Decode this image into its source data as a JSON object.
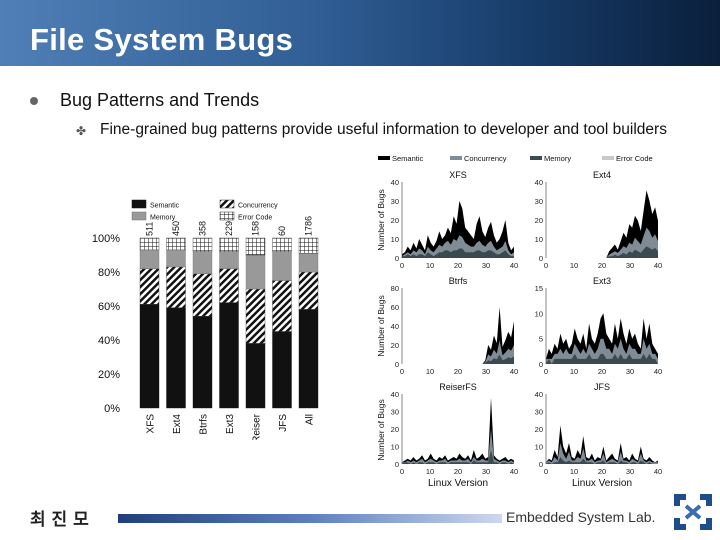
{
  "slide": {
    "title": "File System Bugs",
    "bullet1": "Bug Patterns and Trends",
    "bullet2": "Fine-grained bug patterns provide useful information to developer and tool builders",
    "footer_author": "최 진 모",
    "footer_lab": "Embedded System Lab."
  },
  "chart_data": [
    {
      "type": "bar",
      "stacked": true,
      "categories": [
        "XFS",
        "Ext4",
        "Btrfs",
        "Ext3",
        "Reiser",
        "JFS",
        "All"
      ],
      "counts": [
        "511",
        "450",
        "358",
        "229",
        "158",
        "60",
        "1786"
      ],
      "legend": [
        "Semantic",
        "Concurrency",
        "Memory",
        "Error Code"
      ],
      "ylabels": [
        "0%",
        "20%",
        "40%",
        "60%",
        "80%",
        "100%"
      ],
      "series": [
        {
          "name": "Semantic",
          "values": [
            61,
            59,
            54,
            62,
            38,
            45,
            58
          ]
        },
        {
          "name": "Concurrency",
          "values": [
            21,
            24,
            25,
            20,
            32,
            30,
            22
          ]
        },
        {
          "name": "Memory",
          "values": [
            11,
            10,
            13,
            10,
            20,
            17,
            11
          ]
        },
        {
          "name": "Error Code",
          "values": [
            7,
            7,
            8,
            8,
            10,
            8,
            9
          ]
        }
      ]
    },
    {
      "type": "area",
      "legend": [
        "Semantic",
        "Concurrency",
        "Memory",
        "Error Code"
      ],
      "xlabel": "Linux Version",
      "ylabel": "Number of Bugs",
      "xticks": [
        "0",
        "10",
        "20",
        "30",
        "40"
      ],
      "panels": [
        {
          "name": "XFS",
          "yticks": [
            "0",
            "10",
            "20",
            "30",
            "40"
          ],
          "ymax": 40,
          "semantic": [
            2,
            3,
            6,
            4,
            8,
            5,
            10,
            7,
            4,
            12,
            8,
            6,
            9,
            14,
            10,
            12,
            16,
            13,
            22,
            18,
            30,
            26,
            16,
            14,
            12,
            10,
            18,
            22,
            14,
            11,
            16,
            19,
            12,
            8,
            10,
            14,
            20,
            8,
            4,
            6
          ],
          "concurrency": [
            1,
            2,
            3,
            2,
            4,
            3,
            5,
            4,
            2,
            6,
            4,
            3,
            5,
            7,
            6,
            8,
            9,
            7,
            10,
            9,
            12,
            11,
            8,
            7,
            6,
            6,
            8,
            9,
            7,
            6,
            8,
            9,
            6,
            4,
            5,
            6,
            9,
            4,
            2,
            3
          ],
          "memory": [
            1,
            1,
            2,
            1,
            2,
            1,
            2,
            2,
            1,
            3,
            2,
            1,
            2,
            3,
            3,
            4,
            4,
            3,
            4,
            4,
            5,
            5,
            3,
            3,
            3,
            3,
            4,
            4,
            3,
            3,
            4,
            4,
            3,
            2,
            2,
            3,
            4,
            2,
            1,
            1
          ]
        },
        {
          "name": "Ext4",
          "yticks": [
            "0",
            "10",
            "20",
            "30",
            "40"
          ],
          "ymax": 45,
          "semantic": [
            0,
            0,
            0,
            0,
            0,
            0,
            0,
            0,
            0,
            0,
            0,
            0,
            0,
            0,
            0,
            0,
            0,
            0,
            0,
            0,
            0,
            0,
            4,
            6,
            8,
            5,
            10,
            15,
            12,
            20,
            18,
            25,
            22,
            16,
            28,
            40,
            34,
            26,
            30,
            22
          ],
          "concurrency": [
            0,
            0,
            0,
            0,
            0,
            0,
            0,
            0,
            0,
            0,
            0,
            0,
            0,
            0,
            0,
            0,
            0,
            0,
            0,
            0,
            0,
            0,
            2,
            3,
            4,
            3,
            5,
            7,
            6,
            9,
            8,
            12,
            10,
            8,
            13,
            18,
            16,
            12,
            14,
            10
          ],
          "memory": [
            0,
            0,
            0,
            0,
            0,
            0,
            0,
            0,
            0,
            0,
            0,
            0,
            0,
            0,
            0,
            0,
            0,
            0,
            0,
            0,
            0,
            0,
            1,
            1,
            2,
            1,
            2,
            3,
            2,
            4,
            3,
            5,
            4,
            3,
            5,
            7,
            6,
            5,
            6,
            4
          ]
        },
        {
          "name": "Btrfs",
          "yticks": [
            "0",
            "20",
            "40",
            "60",
            "80"
          ],
          "ymax": 80,
          "semantic": [
            0,
            0,
            0,
            0,
            0,
            0,
            0,
            0,
            0,
            0,
            0,
            0,
            0,
            0,
            0,
            0,
            0,
            0,
            0,
            0,
            0,
            0,
            0,
            0,
            0,
            0,
            0,
            0,
            0,
            4,
            20,
            15,
            30,
            22,
            60,
            18,
            25,
            34,
            28,
            45
          ],
          "concurrency": [
            0,
            0,
            0,
            0,
            0,
            0,
            0,
            0,
            0,
            0,
            0,
            0,
            0,
            0,
            0,
            0,
            0,
            0,
            0,
            0,
            0,
            0,
            0,
            0,
            0,
            0,
            0,
            0,
            0,
            2,
            10,
            8,
            15,
            11,
            25,
            9,
            12,
            16,
            14,
            20
          ],
          "memory": [
            0,
            0,
            0,
            0,
            0,
            0,
            0,
            0,
            0,
            0,
            0,
            0,
            0,
            0,
            0,
            0,
            0,
            0,
            0,
            0,
            0,
            0,
            0,
            0,
            0,
            0,
            0,
            0,
            0,
            1,
            4,
            3,
            6,
            5,
            10,
            4,
            5,
            7,
            6,
            8
          ]
        },
        {
          "name": "Ext3",
          "yticks": [
            "0",
            "5",
            "10",
            "15"
          ],
          "ymax": 15,
          "semantic": [
            1,
            3,
            2,
            4,
            3,
            6,
            4,
            5,
            3,
            4,
            7,
            5,
            4,
            6,
            3,
            8,
            5,
            4,
            6,
            9,
            10,
            6,
            5,
            4,
            8,
            5,
            9,
            6,
            4,
            7,
            5,
            6,
            4,
            3,
            9,
            5,
            8,
            4,
            3,
            2
          ],
          "concurrency": [
            1,
            1,
            1,
            2,
            2,
            3,
            2,
            3,
            2,
            2,
            4,
            3,
            2,
            3,
            2,
            4,
            3,
            2,
            3,
            5,
            5,
            3,
            3,
            2,
            4,
            3,
            5,
            3,
            2,
            4,
            3,
            3,
            2,
            2,
            5,
            3,
            4,
            2,
            2,
            1
          ],
          "memory": [
            0,
            1,
            0,
            1,
            1,
            1,
            1,
            1,
            1,
            1,
            2,
            1,
            1,
            1,
            1,
            2,
            1,
            1,
            1,
            2,
            2,
            1,
            1,
            1,
            2,
            1,
            2,
            1,
            1,
            2,
            1,
            1,
            1,
            1,
            2,
            1,
            2,
            1,
            1,
            0
          ]
        },
        {
          "name": "ReiserFS",
          "yticks": [
            "0",
            "10",
            "20",
            "30",
            "40"
          ],
          "ymax": 40,
          "semantic": [
            1,
            2,
            3,
            2,
            4,
            2,
            3,
            5,
            2,
            3,
            6,
            3,
            2,
            4,
            3,
            5,
            2,
            3,
            4,
            3,
            6,
            4,
            3,
            5,
            2,
            8,
            3,
            4,
            6,
            3,
            4,
            38,
            5,
            3,
            2,
            3,
            4,
            2,
            3,
            2
          ],
          "concurrency": [
            1,
            1,
            2,
            1,
            2,
            1,
            2,
            3,
            1,
            2,
            3,
            2,
            1,
            2,
            2,
            3,
            1,
            2,
            2,
            2,
            3,
            2,
            2,
            3,
            1,
            4,
            2,
            2,
            3,
            2,
            2,
            20,
            3,
            2,
            1,
            2,
            2,
            1,
            2,
            1
          ],
          "memory": [
            0,
            1,
            1,
            0,
            1,
            0,
            1,
            1,
            0,
            1,
            1,
            1,
            0,
            1,
            1,
            1,
            0,
            1,
            1,
            1,
            1,
            1,
            1,
            1,
            0,
            2,
            1,
            1,
            1,
            1,
            1,
            8,
            1,
            1,
            0,
            1,
            1,
            0,
            1,
            0
          ]
        },
        {
          "name": "JFS",
          "yticks": [
            "0",
            "10",
            "20",
            "30",
            "40"
          ],
          "ymax": 40,
          "semantic": [
            1,
            3,
            2,
            8,
            4,
            22,
            10,
            6,
            12,
            4,
            3,
            8,
            5,
            16,
            4,
            3,
            6,
            2,
            4,
            3,
            10,
            2,
            4,
            6,
            3,
            2,
            12,
            3,
            4,
            2,
            6,
            3,
            2,
            10,
            3,
            2,
            4,
            2,
            1,
            2
          ],
          "concurrency": [
            1,
            2,
            1,
            4,
            2,
            12,
            6,
            3,
            7,
            2,
            2,
            4,
            3,
            9,
            2,
            2,
            3,
            1,
            2,
            2,
            6,
            1,
            2,
            3,
            2,
            1,
            7,
            2,
            2,
            1,
            3,
            2,
            1,
            6,
            2,
            1,
            2,
            1,
            1,
            1
          ],
          "memory": [
            0,
            1,
            0,
            1,
            1,
            4,
            2,
            1,
            2,
            1,
            1,
            1,
            1,
            3,
            1,
            1,
            1,
            0,
            1,
            1,
            2,
            0,
            1,
            1,
            1,
            0,
            2,
            1,
            1,
            0,
            1,
            1,
            0,
            2,
            1,
            0,
            1,
            0,
            0,
            0
          ]
        }
      ]
    }
  ]
}
